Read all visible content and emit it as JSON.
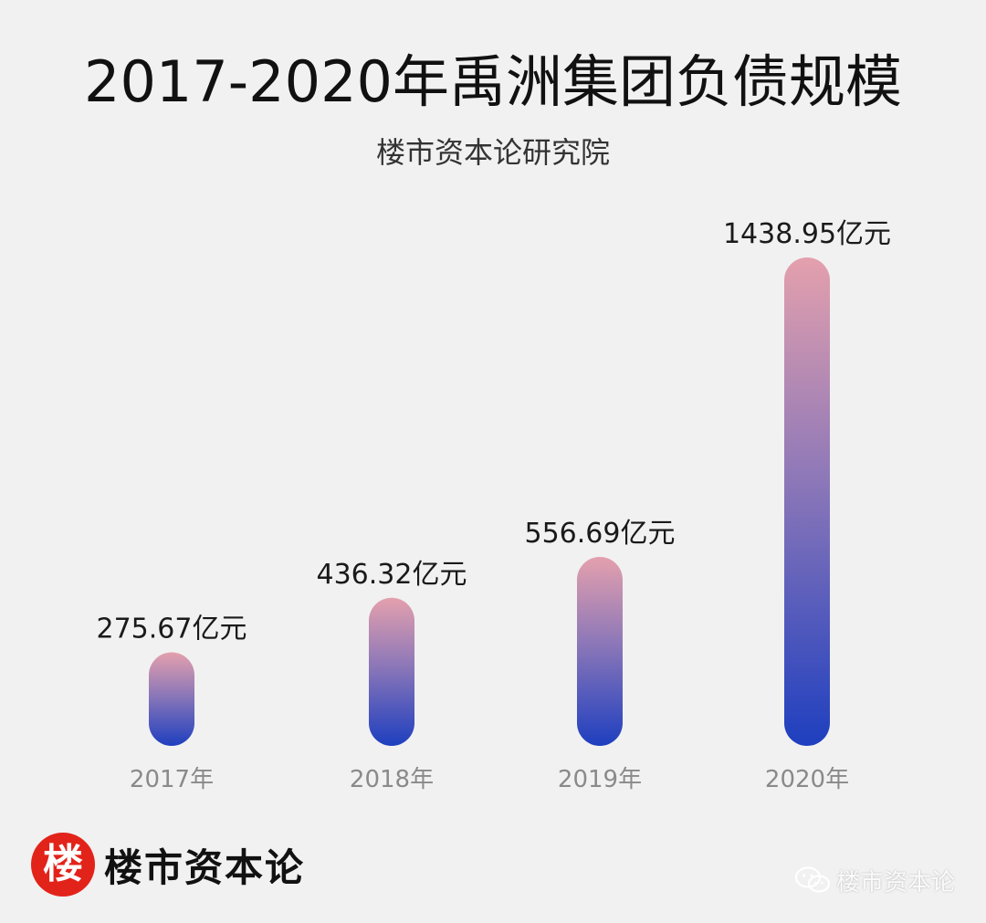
{
  "chart_data": {
    "type": "bar",
    "title": "2017-2020年禹洲集团负债规模",
    "subtitle": "楼市资本论研究院",
    "categories": [
      "2017年",
      "2018年",
      "2019年",
      "2020年"
    ],
    "values": [
      275.67,
      436.32,
      556.69,
      1438.95
    ],
    "value_labels": [
      "275.67亿元",
      "436.32亿元",
      "556.69亿元",
      "1438.95亿元"
    ],
    "ylim": [
      0,
      1438.95
    ],
    "grid": false,
    "legend": "none",
    "colors": {
      "bar_top": "#e4a0ad",
      "bar_mid": "#8e78b8",
      "bar_bottom": "#1e3fbf",
      "value_label": "#1a1a1a",
      "category_label": "#8a8a8a"
    }
  },
  "branding": {
    "badge_char": "楼",
    "name": "楼市资本论",
    "badge_color": "#e2231a",
    "watermark_icon": "wechat-icon",
    "watermark_text": "楼市资本论"
  }
}
